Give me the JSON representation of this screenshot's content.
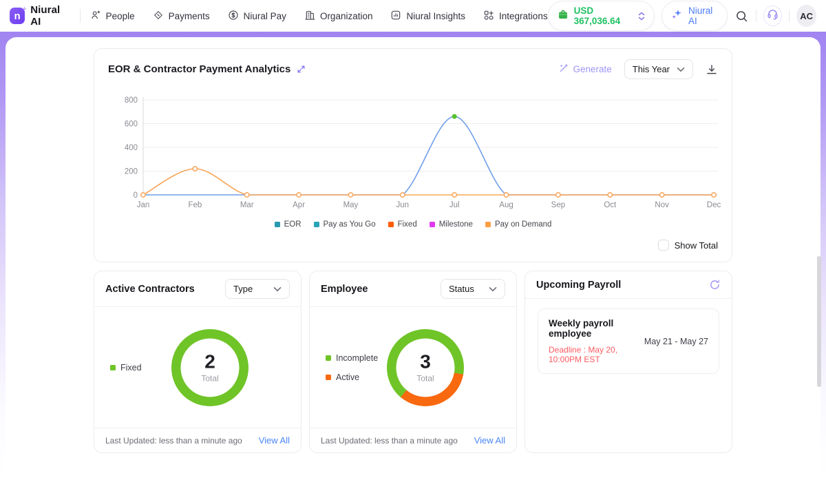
{
  "nav": {
    "brand": "Niural AI",
    "items": [
      {
        "label": "People",
        "icon": "people-icon"
      },
      {
        "label": "Payments",
        "icon": "payments-icon"
      },
      {
        "label": "Niural Pay",
        "icon": "niural-pay-icon"
      },
      {
        "label": "Organization",
        "icon": "organization-icon"
      },
      {
        "label": "Niural Insights",
        "icon": "insights-icon"
      },
      {
        "label": "Integrations",
        "icon": "integrations-icon"
      }
    ],
    "balance": "USD 367,036.64",
    "ai_button_label": "Niural AI",
    "avatar_initials": "AC"
  },
  "analytics": {
    "title": "EOR & Contractor Payment Analytics",
    "generate_label": "Generate",
    "range_selected": "This Year",
    "show_total_label": "Show Total"
  },
  "chart_data": {
    "type": "line",
    "title": "EOR & Contractor Payment Analytics",
    "x": [
      "Jan",
      "Feb",
      "Mar",
      "Apr",
      "May",
      "Jun",
      "Jul",
      "Aug",
      "Sep",
      "Oct",
      "Nov",
      "Dec"
    ],
    "ylim": [
      0,
      800
    ],
    "yticks": [
      0,
      200,
      400,
      600,
      800
    ],
    "grid": true,
    "legend_position": "bottom",
    "series": [
      {
        "name": "EOR",
        "legend_color": "#2a9ab0",
        "line_color": "#6f9fe9",
        "values": [
          0,
          0,
          0,
          0,
          0,
          0,
          660,
          0,
          0,
          0,
          0,
          0
        ],
        "markers": "peak-only",
        "peak_marker_color": "#56c22d"
      },
      {
        "name": "Pay as You Go",
        "legend_color": "#29a3b8",
        "line_color": "#29a3b8",
        "values": [
          0,
          0,
          0,
          0,
          0,
          0,
          0,
          0,
          0,
          0,
          0,
          0
        ],
        "markers": "none"
      },
      {
        "name": "Fixed",
        "legend_color": "#ff5b00",
        "line_color": "#ff5b00",
        "values": [
          0,
          0,
          0,
          0,
          0,
          0,
          0,
          0,
          0,
          0,
          0,
          0
        ],
        "markers": "none"
      },
      {
        "name": "Milestone",
        "legend_color": "#de3cf0",
        "line_color": "#de3cf0",
        "values": [
          0,
          0,
          0,
          0,
          0,
          0,
          0,
          0,
          0,
          0,
          0,
          0
        ],
        "markers": "none"
      },
      {
        "name": "Pay on Demand",
        "legend_color": "#ff9f45",
        "line_color": "#f8a557",
        "values": [
          0,
          220,
          0,
          0,
          0,
          0,
          0,
          0,
          0,
          0,
          0,
          0
        ],
        "markers": "all"
      }
    ]
  },
  "contractors": {
    "title": "Active Contractors",
    "filter_label": "Type",
    "legend": [
      {
        "label": "Fixed",
        "color": "#6fc427"
      }
    ],
    "donut": {
      "start_deg": 0,
      "segments": [
        {
          "label": "Fixed",
          "color": "#6fc427",
          "value": 2
        }
      ],
      "total": "2",
      "total_label": "Total"
    },
    "last_updated": "Last Updated: less than a minute ago",
    "view_all_label": "View All"
  },
  "employee": {
    "title": "Employee",
    "filter_label": "Status",
    "legend": [
      {
        "label": "Incomplete",
        "color": "#6fc427"
      },
      {
        "label": "Active",
        "color": "#f9690f"
      }
    ],
    "donut": {
      "start_deg": 220,
      "segments": [
        {
          "label": "Incomplete",
          "color": "#6fc427",
          "value": 2
        },
        {
          "label": "Active",
          "color": "#f9690f",
          "value": 1
        }
      ],
      "total": "3",
      "total_label": "Total"
    },
    "last_updated": "Last Updated: less than a minute ago",
    "view_all_label": "View All"
  },
  "payroll": {
    "title": "Upcoming Payroll",
    "item": {
      "name": "Weekly payroll employee",
      "deadline": "Deadline : May 20, 10:00PM EST",
      "period": "May 21 - May 27"
    }
  }
}
